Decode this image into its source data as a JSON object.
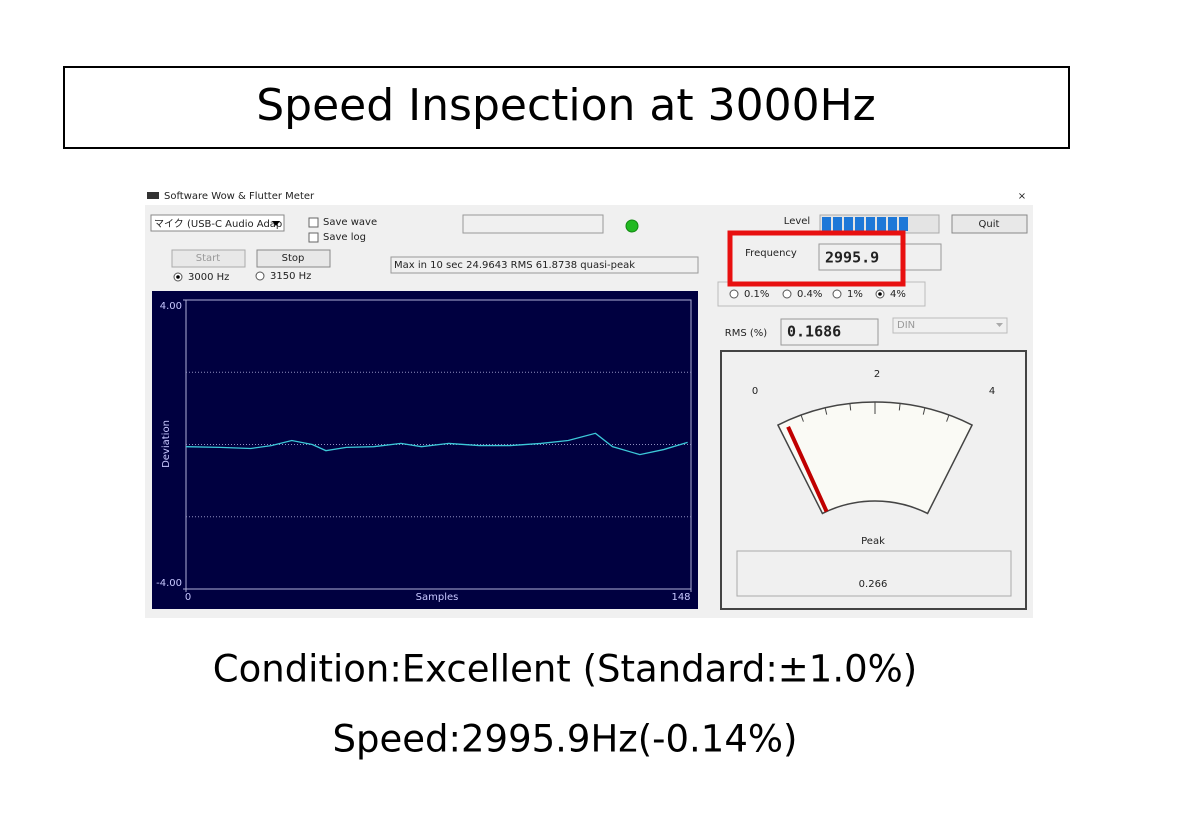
{
  "slide": {
    "title": "Speed Inspection at 3000Hz",
    "condition": "Condition:Excellent (Standard:±1.0%)",
    "speed": "Speed:2995.9Hz(-0.14%)"
  },
  "window": {
    "title": "Software Wow & Flutter Meter",
    "close": "×",
    "device": "マイク (USB-C Audio Adap",
    "checkboxes": [
      "Save wave",
      "Save log"
    ],
    "buttons": {
      "start": "Start",
      "stop": "Stop",
      "quit": "Quit"
    },
    "frequency_options": [
      "3000 Hz",
      "3150 Hz"
    ],
    "frequency_selected": 0,
    "status": "Max in 10 sec 24.9643 RMS 61.8738 quasi-peak",
    "level_label": "Level",
    "frequency_label": "Frequency",
    "frequency_value": 2995.9,
    "range_options": [
      "0.1%",
      "0.4%",
      "1%",
      "4%"
    ],
    "range_selected": 3,
    "rms_label": "RMS (%)",
    "rms_value": 0.1686,
    "weighting": "DIN",
    "meter": {
      "scale": [
        0,
        2,
        4
      ],
      "peak_label": "Peak",
      "peak_value": 0.266
    }
  },
  "chart_data": {
    "type": "line",
    "y_label": "Deviation",
    "x_label": "Samples",
    "x": [
      0,
      10,
      19,
      25,
      31,
      37,
      41,
      47,
      55,
      63,
      69,
      77,
      86,
      95,
      104,
      112,
      120,
      125,
      133,
      140,
      147
    ],
    "values": [
      -0.06,
      -0.08,
      -0.11,
      -0.03,
      0.11,
      0,
      -0.17,
      -0.08,
      -0.06,
      0.03,
      -0.06,
      0.03,
      -0.03,
      -0.03,
      0.03,
      0.11,
      0.31,
      -0.06,
      -0.28,
      -0.14,
      0.06
    ],
    "color": "#3cc8d8",
    "xlim": [
      0,
      148
    ],
    "xticks": [
      0,
      148
    ],
    "ylim": [
      -4,
      4
    ],
    "yticks": [
      {
        "value": 4,
        "label": "4.00"
      },
      {
        "value": -4,
        "label": "-4.00"
      }
    ],
    "grid_lines": [
      2,
      0,
      -2
    ]
  }
}
